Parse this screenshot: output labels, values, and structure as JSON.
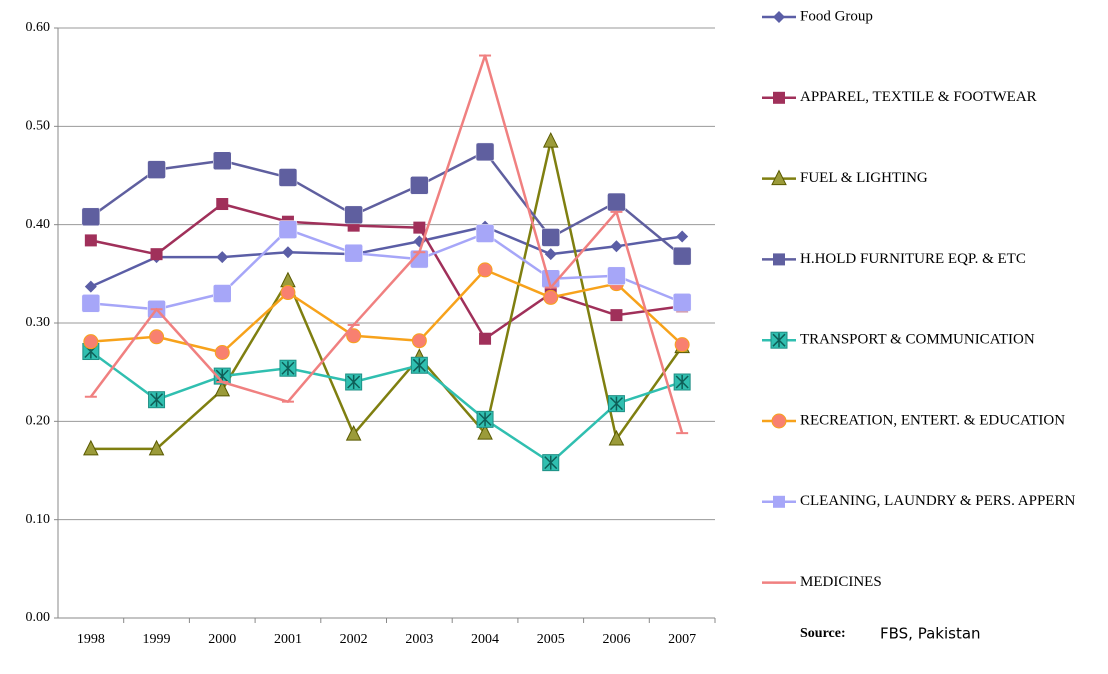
{
  "chart_data": {
    "type": "line",
    "categories": [
      "1998",
      "1999",
      "2000",
      "2001",
      "2002",
      "2003",
      "2004",
      "2005",
      "2006",
      "2007"
    ],
    "ylim": [
      0,
      0.6
    ],
    "yticks": [
      {
        "value": 0,
        "label": "0.00"
      },
      {
        "value": 0.1,
        "label": "0.10"
      },
      {
        "value": 0.2,
        "label": "0.20"
      },
      {
        "value": 0.3,
        "label": "0.30"
      },
      {
        "value": 0.4,
        "label": "0.40"
      },
      {
        "value": 0.5,
        "label": "0.50"
      },
      {
        "value": 0.6,
        "label": "0.60"
      }
    ],
    "grid": true,
    "legend": "right",
    "series": [
      {
        "name": "Food Group",
        "color": "#5b5ea6",
        "marker": "diamond",
        "values": [
          0.337,
          0.367,
          0.367,
          0.372,
          0.37,
          0.383,
          0.398,
          0.37,
          0.378,
          0.388
        ]
      },
      {
        "name": "APPAREL, TEXTILE & FOOTWEAR",
        "color": "#a0305a",
        "marker": "square",
        "values": [
          0.384,
          0.37,
          0.421,
          0.403,
          0.399,
          0.397,
          0.284,
          0.33,
          0.308,
          0.317
        ]
      },
      {
        "name": "FUEL & LIGHTING",
        "color": "#7f7f10",
        "marker": "triangle",
        "values": [
          0.172,
          0.172,
          0.232,
          0.343,
          0.187,
          0.265,
          0.188,
          0.485,
          0.182,
          0.276
        ]
      },
      {
        "name": "H.HOLD FURNITURE EQP. & ETC",
        "color": "#5f5f9f",
        "marker": "bigsquare",
        "values": [
          0.408,
          0.456,
          0.465,
          0.448,
          0.41,
          0.44,
          0.474,
          0.387,
          0.423,
          0.368
        ]
      },
      {
        "name": "TRANSPORT & COMMUNICATION",
        "color": "#30bfb0",
        "marker": "star",
        "values": [
          0.271,
          0.222,
          0.246,
          0.254,
          0.24,
          0.257,
          0.202,
          0.158,
          0.218,
          0.24
        ]
      },
      {
        "name": "RECREATION, ENTERT. & EDUCATION",
        "color": "#f7a21b",
        "marker": "circle",
        "values": [
          0.281,
          0.286,
          0.27,
          0.331,
          0.287,
          0.282,
          0.354,
          0.326,
          0.34,
          0.278
        ]
      },
      {
        "name": "CLEANING, LAUNDRY & PERS. APPERN",
        "color": "#a6a6f8",
        "marker": "bigsquare",
        "values": [
          0.32,
          0.314,
          0.33,
          0.395,
          0.371,
          0.365,
          0.391,
          0.345,
          0.348,
          0.321
        ]
      },
      {
        "name": "MEDICINES",
        "color": "#f08080",
        "marker": "dash",
        "values": [
          0.225,
          0.314,
          0.24,
          0.22,
          0.298,
          0.372,
          0.572,
          0.336,
          0.413,
          0.188
        ]
      }
    ],
    "source_label": "Source:",
    "source_text": "FBS, Pakistan"
  }
}
